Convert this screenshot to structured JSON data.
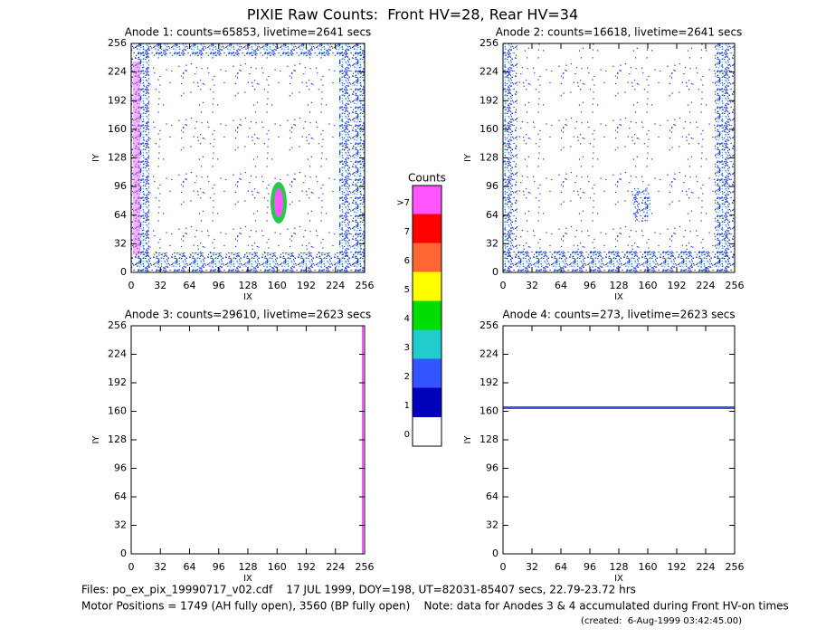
{
  "title": "PIXIE Raw Counts:  Front HV=28, Rear HV=34",
  "footer": [
    "Files: po_ex_pix_19990717_v02.cdf    17 JUL 1999, DOY=198, UT=82031-85407 secs, 22.79-23.72 hrs",
    "Motor Positions = 1749 (AH fully open), 3560 (BP fully open)    Note: data for Anodes 3 & 4 accumulated during Front HV-on times",
    "(created:  6-Aug-1999 03:42:45.00)"
  ],
  "chart_data": [
    {
      "type": "heatmap",
      "title": "Anode 1: counts=65853, livetime=2641 secs",
      "xlabel": "IX",
      "ylabel": "IY",
      "xlim": [
        0,
        256
      ],
      "ylim": [
        0,
        256
      ],
      "xticks": [
        0,
        32,
        64,
        96,
        128,
        160,
        192,
        224,
        256
      ],
      "yticks": [
        0,
        32,
        64,
        96,
        128,
        160,
        192,
        224,
        256
      ]
    },
    {
      "type": "heatmap",
      "title": "Anode 2: counts=16618, livetime=2641 secs",
      "xlabel": "IX",
      "ylabel": "IY",
      "xlim": [
        0,
        256
      ],
      "ylim": [
        0,
        256
      ],
      "xticks": [
        0,
        32,
        64,
        96,
        128,
        160,
        192,
        224,
        256
      ],
      "yticks": [
        0,
        32,
        64,
        96,
        128,
        160,
        192,
        224,
        256
      ]
    },
    {
      "type": "heatmap",
      "title": "Anode 3: counts=29610, livetime=2623 secs",
      "xlabel": "IX",
      "ylabel": "IY",
      "xlim": [
        0,
        256
      ],
      "ylim": [
        0,
        256
      ],
      "xticks": [
        0,
        32,
        64,
        96,
        128,
        160,
        192,
        224,
        256
      ],
      "yticks": [
        0,
        32,
        64,
        96,
        128,
        160,
        192,
        224,
        256
      ]
    },
    {
      "type": "heatmap",
      "title": "Anode 4: counts=273, livetime=2623 secs",
      "xlabel": "IX",
      "ylabel": "IY",
      "xlim": [
        0,
        256
      ],
      "ylim": [
        0,
        256
      ],
      "xticks": [
        0,
        32,
        64,
        96,
        128,
        160,
        192,
        224,
        256
      ],
      "yticks": [
        0,
        32,
        64,
        96,
        128,
        160,
        192,
        224,
        256
      ]
    },
    {
      "type": "colorbar",
      "title": "Counts",
      "categories": [
        ">7",
        "7",
        "6",
        "5",
        "4",
        "3",
        "2",
        "1",
        "0"
      ],
      "colors": [
        "#ff55ff",
        "#ff0000",
        "#ff6633",
        "#ffff00",
        "#00dd00",
        "#22cccc",
        "#3355ff",
        "#0000bb",
        "#ffffff"
      ]
    }
  ]
}
